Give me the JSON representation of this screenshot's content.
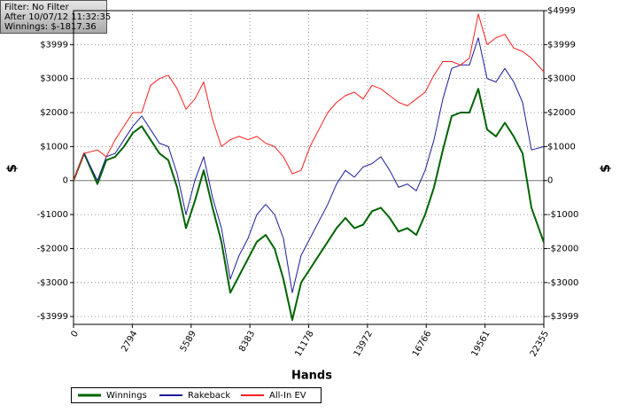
{
  "chart_data": {
    "type": "line",
    "annotations": [
      "Filter: No Filter",
      "After 10/07/12 11:32:35",
      "Winnings: $-1817.36"
    ],
    "x_label": "Hands",
    "y_label": "$",
    "y2_label": "$",
    "x": [
      0,
      505,
      1137,
      1558,
      1979,
      2400,
      2821,
      3242,
      3663,
      4084,
      4505,
      4926,
      5347,
      5768,
      6189,
      6610,
      7031,
      7452,
      7873,
      8294,
      8715,
      9136,
      9557,
      9978,
      10399,
      10820,
      11241,
      11662,
      12083,
      12504,
      12925,
      13346,
      13767,
      14188,
      14609,
      15030,
      15451,
      15872,
      16293,
      16714,
      17135,
      17556,
      17977,
      18398,
      18819,
      19240,
      19661,
      20082,
      20503,
      20924,
      21345,
      21766,
      22355
    ],
    "series": [
      {
        "name": "Winnings",
        "color": "#006400",
        "width": 2,
        "values": [
          0,
          800,
          -100,
          600,
          700,
          1000,
          1400,
          1600,
          1200,
          800,
          600,
          -200,
          -1400,
          -600,
          300,
          -800,
          -1800,
          -3300,
          -2800,
          -2300,
          -1800,
          -1600,
          -2000,
          -2900,
          -4100,
          -3000,
          -2600,
          -2200,
          -1800,
          -1400,
          -1100,
          -1400,
          -1300,
          -900,
          -800,
          -1100,
          -1500,
          -1400,
          -1600,
          -1000,
          -200,
          900,
          1900,
          2000,
          2000,
          2700,
          1500,
          1300,
          1700,
          1300,
          800,
          -800,
          -1817.36
        ]
      },
      {
        "name": "Rakeback",
        "color": "#1c1c9c",
        "width": 1,
        "values": [
          0,
          800,
          0,
          700,
          800,
          1200,
          1600,
          1900,
          1500,
          1100,
          1000,
          200,
          -1000,
          0,
          700,
          -500,
          -1400,
          -2900,
          -2200,
          -1700,
          -1000,
          -700,
          -1000,
          -1700,
          -3300,
          -2200,
          -1700,
          -1200,
          -700,
          -100,
          300,
          100,
          400,
          500,
          700,
          300,
          -200,
          -100,
          -300,
          300,
          1200,
          2400,
          3300,
          3400,
          3400,
          4200,
          3000,
          2900,
          3300,
          2900,
          2300,
          900,
          1000
        ]
      },
      {
        "name": "All-In EV",
        "color": "#ff2020",
        "width": 1,
        "values": [
          0,
          800,
          900,
          700,
          1200,
          1600,
          2000,
          2000,
          2800,
          3000,
          3100,
          2700,
          2100,
          2400,
          2900,
          1800,
          1000,
          1200,
          1300,
          1200,
          1300,
          1100,
          1000,
          700,
          200,
          300,
          1000,
          1500,
          2000,
          2300,
          2500,
          2600,
          2400,
          2800,
          2700,
          2500,
          2300,
          2200,
          2400,
          2600,
          3100,
          3500,
          3500,
          3400,
          3600,
          4900,
          4000,
          4200,
          4300,
          3900,
          3800,
          3600,
          3200
        ]
      }
    ],
    "xlim": [
      0,
      22355
    ],
    "xticks": [
      0,
      2794,
      5589,
      8383,
      11178,
      13972,
      16766,
      19561,
      22355
    ],
    "ylim": [
      -4230,
      4999
    ],
    "yticks": [
      {
        "value": 3999,
        "label": "$3999"
      },
      {
        "value": 3000,
        "label": "$3000"
      },
      {
        "value": 2000,
        "label": "$2000"
      },
      {
        "value": 1000,
        "label": "$1000"
      },
      0,
      {
        "value": -1000,
        "label": "-$1000"
      },
      {
        "value": -2000,
        "label": "-$2000"
      },
      {
        "value": -3000,
        "label": "-$3000"
      },
      {
        "value": -3999,
        "label": "-$3999"
      }
    ],
    "y2lim": [
      -4230,
      4999
    ],
    "y2ticks": [
      {
        "value": 4999,
        "label": "$4999"
      },
      {
        "value": 3999,
        "label": "$3999"
      },
      {
        "value": 3000,
        "label": "$3000"
      },
      {
        "value": 2000,
        "label": "$2000"
      },
      {
        "value": 1000,
        "label": "$1000"
      },
      0,
      {
        "value": -1000,
        "label": "-$1000"
      },
      {
        "value": -2000,
        "label": "-$2000"
      },
      {
        "value": -3000,
        "label": "-$3000"
      },
      {
        "value": -3999,
        "label": "-$3999"
      }
    ],
    "grid": true,
    "legend": "bottom-left"
  }
}
